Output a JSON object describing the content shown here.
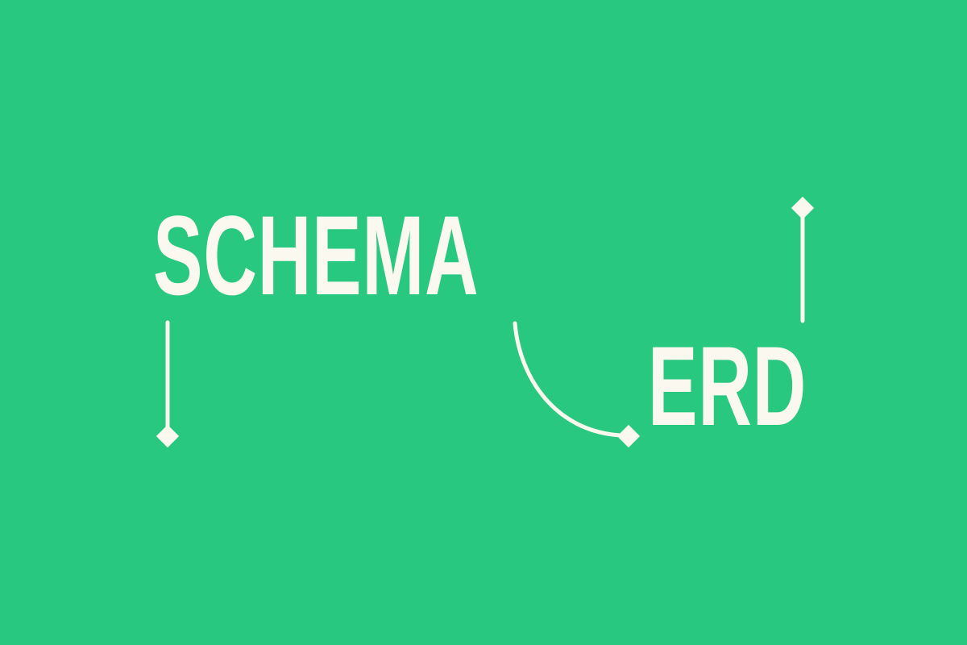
{
  "graphic": {
    "word_primary": "SCHEMA",
    "word_secondary": "ERD",
    "colors": {
      "background": "#29c880",
      "foreground": "#fbf8ef"
    }
  }
}
